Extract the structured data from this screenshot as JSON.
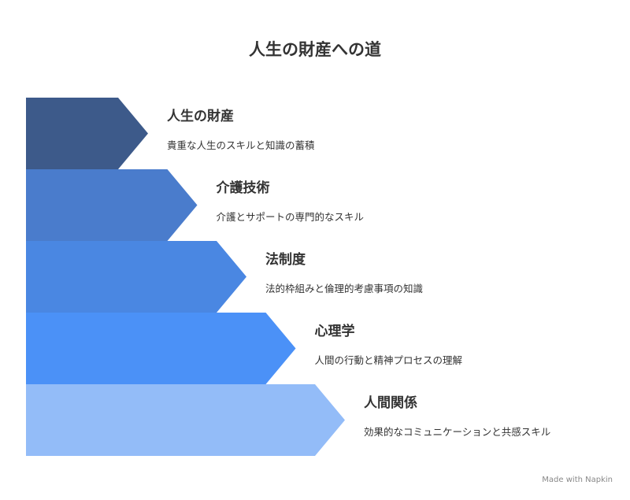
{
  "title": "人生の財産への道",
  "items": [
    {
      "title": "人生の財産",
      "description": "貴重な人生のスキルと知識の蓄積"
    },
    {
      "title": "介護技術",
      "description": "介護とサポートの専門的なスキル"
    },
    {
      "title": "法制度",
      "description": "法的枠組みと倫理的考慮事項の知識"
    },
    {
      "title": "心理学",
      "description": "人間の行動と精神プロセスの理解"
    },
    {
      "title": "人間関係",
      "description": "効果的なコミュニケーションと共感スキル"
    }
  ],
  "footer": "Made with Napkin"
}
